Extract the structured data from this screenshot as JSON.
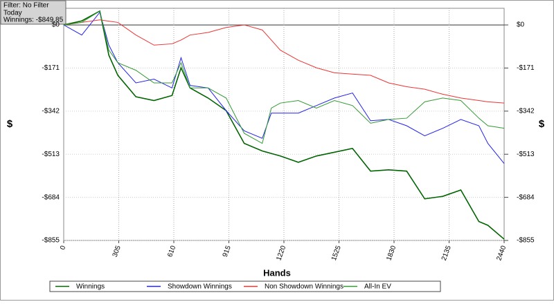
{
  "chart_data": {
    "type": "line",
    "annotations": [
      "Filter: No Filter",
      "Today",
      "Winnings: -$849.85"
    ],
    "xlabel": "Hands",
    "ylabel": "$",
    "y2label": "$",
    "x": [
      0,
      100,
      200,
      250,
      300,
      400,
      500,
      600,
      650,
      700,
      800,
      900,
      1000,
      1100,
      1150,
      1200,
      1300,
      1400,
      1500,
      1600,
      1700,
      1800,
      1900,
      2000,
      2100,
      2200,
      2300,
      2350,
      2440
    ],
    "series": [
      {
        "name": "Winnings",
        "color": "#006400",
        "values": [
          0,
          16,
          55,
          -120,
          -200,
          -285,
          -300,
          -280,
          -170,
          -250,
          -290,
          -340,
          -470,
          -500,
          -510,
          -520,
          -545,
          -520,
          -505,
          -490,
          -580,
          -575,
          -580,
          -690,
          -680,
          -655,
          -780,
          -795,
          -850
        ]
      },
      {
        "name": "Showdown Winnings",
        "color": "#2222ee",
        "values": [
          0,
          -40,
          50,
          -80,
          -150,
          -230,
          -215,
          -250,
          -130,
          -240,
          -250,
          -340,
          -420,
          -450,
          -350,
          -350,
          -350,
          -320,
          -290,
          -270,
          -380,
          -375,
          -400,
          -440,
          -410,
          -375,
          -400,
          -470,
          -550
        ]
      },
      {
        "name": "Non Showdown Winnings",
        "color": "#ee3333",
        "values": [
          0,
          10,
          20,
          15,
          10,
          -40,
          -80,
          -75,
          -60,
          -40,
          -30,
          -10,
          0,
          -20,
          -60,
          -100,
          -140,
          -170,
          -190,
          -195,
          -200,
          -230,
          -245,
          -255,
          -275,
          -290,
          -300,
          -305,
          -310
        ]
      },
      {
        "name": "All-In EV",
        "color": "#339933",
        "values": [
          0,
          10,
          55,
          -100,
          -150,
          -180,
          -230,
          -230,
          -150,
          -250,
          -250,
          -290,
          -430,
          -470,
          -330,
          -310,
          -300,
          -330,
          -300,
          -320,
          -390,
          -375,
          -370,
          -305,
          -290,
          -300,
          -370,
          -400,
          -410
        ]
      }
    ],
    "xlim": [
      0,
      2440
    ],
    "xticks": [
      0,
      305,
      610,
      915,
      1220,
      1525,
      1830,
      2135,
      2440
    ],
    "ylim": [
      -855,
      66
    ],
    "yticks": [
      {
        "value": 0,
        "label": "$0"
      },
      {
        "value": -171,
        "label": "-$171"
      },
      {
        "value": -342,
        "label": "-$342"
      },
      {
        "value": -513,
        "label": "-$513"
      },
      {
        "value": -684,
        "label": "-$684"
      },
      {
        "value": -855,
        "label": "-$855"
      }
    ],
    "grid": true,
    "legend": "bottom"
  }
}
